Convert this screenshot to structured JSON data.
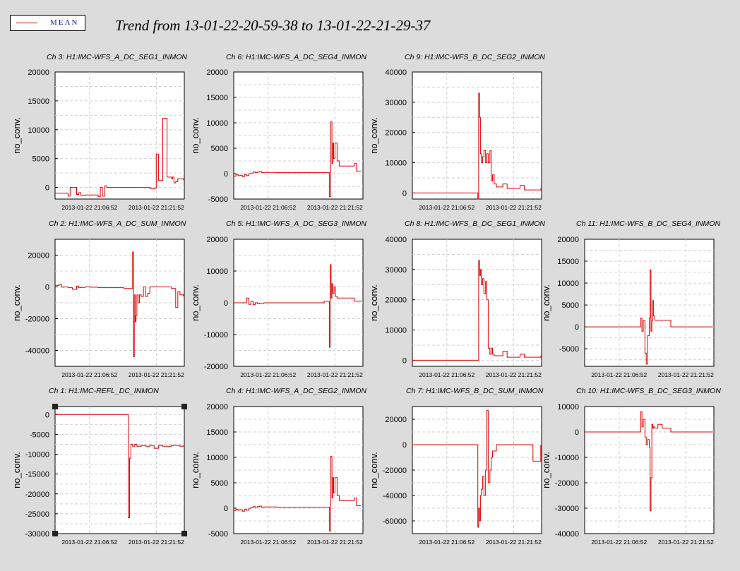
{
  "legend": {
    "label": "MEAN",
    "color": "#e00000"
  },
  "title": "Trend from 13-01-22-20-59-38 to 13-01-22-21-29-37",
  "colors": {
    "trace": "#e00000",
    "plot_bg": "#ffffff",
    "page_bg": "#dcdcdc",
    "grid": "#c8c8c8"
  },
  "chart_data": [
    {
      "type": "line",
      "title": "Ch 3: H1:IMC-WFS_A_DC_SEG1_INMON",
      "ylabel": "no_conv.",
      "ylim": [
        -2000,
        20000
      ],
      "yticks": [
        0,
        5000,
        10000,
        15000,
        20000
      ],
      "xticks": [
        "2013-01-22 21:06:52",
        "2013-01-22 21:21:52"
      ],
      "series": [
        {
          "x": [
            0,
            3,
            3.5,
            5,
            5.5,
            6,
            7,
            10,
            10.5,
            11,
            11.5,
            12,
            15,
            15.5,
            16,
            17,
            20,
            20.3,
            20.6,
            21,
            21.3,
            21.6,
            22,
            22,
            22.3,
            23,
            23.5,
            24,
            25,
            26,
            27,
            27.3,
            27.6,
            28,
            28.5,
            29,
            29.8
          ],
          "y": [
            -1000,
            -1500,
            0,
            -1200,
            -900,
            -1400,
            -1300,
            -1600,
            0,
            -1500,
            300,
            0,
            0,
            0,
            0,
            0,
            0,
            0,
            0,
            0,
            0,
            0,
            -200,
            -200,
            -200,
            -100,
            5800,
            1200,
            12000,
            1800,
            1500,
            1800,
            800,
            1000,
            1500,
            1500,
            1300
          ]
        }
      ]
    },
    {
      "type": "line",
      "title": "Ch 6: H1:IMC-WFS_A_DC_SEG4_INMON",
      "ylabel": "no_conv.",
      "ylim": [
        -5000,
        20000
      ],
      "yticks": [
        -5000,
        0,
        5000,
        10000,
        15000,
        20000
      ],
      "xticks": [
        "2013-01-22 21:06:52",
        "2013-01-22 21:21:52"
      ],
      "series": [
        {
          "x": [
            0,
            0.5,
            1,
            1.5,
            2,
            2.5,
            3,
            3.5,
            4,
            4.5,
            5,
            5.5,
            6,
            6.5,
            7,
            10,
            12,
            15,
            20,
            21.5,
            22,
            22.2,
            22.5,
            22.8,
            23,
            23.2,
            23.5,
            24,
            24.5,
            25,
            25.5,
            26,
            26.5,
            27,
            27.5,
            28,
            28.5,
            29,
            29.5
          ],
          "y": [
            -500,
            -200,
            -400,
            -300,
            -600,
            -200,
            -400,
            0,
            100,
            300,
            200,
            300,
            400,
            200,
            250,
            200,
            200,
            200,
            200,
            200,
            200,
            -4500,
            10200,
            2000,
            6000,
            3000,
            6000,
            2500,
            1500,
            1500,
            1500,
            1500,
            1500,
            1500,
            1500,
            2000,
            500,
            500,
            500
          ]
        }
      ]
    },
    {
      "type": "line",
      "title": "Ch 9: H1:IMC-WFS_B_DC_SEG2_INMON",
      "ylabel": "no_conv.",
      "ylim": [
        -2000,
        40000
      ],
      "yticks": [
        0,
        10000,
        20000,
        30000,
        40000
      ],
      "xticks": [
        "2013-01-22 21:06:52",
        "2013-01-22 21:21:52"
      ],
      "series": [
        {
          "x": [
            0,
            5,
            10,
            14,
            15,
            15.2,
            15.4,
            15.6,
            15.8,
            16,
            16.3,
            16.6,
            17,
            17.3,
            17.6,
            18,
            18.3,
            18.6,
            19,
            19.5,
            20,
            21,
            22,
            23,
            24,
            25,
            26,
            27,
            28,
            29.8
          ],
          "y": [
            0,
            0,
            0,
            0,
            0,
            -2000,
            33000,
            25000,
            13000,
            10000,
            12000,
            14000,
            10000,
            13000,
            10000,
            14000,
            4000,
            6000,
            3000,
            2000,
            2000,
            3000,
            1500,
            1500,
            1500,
            2500,
            1000,
            1000,
            1000,
            1500
          ]
        }
      ]
    },
    {
      "type": "line",
      "title": "Ch 2: H1:IMC-WFS_A_DC_SUM_INMON",
      "ylabel": "no_conv.",
      "ylim": [
        -50000,
        30000
      ],
      "yticks": [
        -40000,
        -20000,
        0,
        20000
      ],
      "xticks": [
        "2013-01-22 21:06:52",
        "2013-01-22 21:21:52"
      ],
      "series": [
        {
          "x": [
            0,
            1,
            1.5,
            2,
            3,
            4,
            5,
            5.5,
            6,
            7,
            8,
            10,
            12,
            15,
            16,
            17,
            18,
            18.2,
            18.4,
            18.6,
            18.8,
            19,
            19.3,
            19.6,
            20,
            20.5,
            21,
            21.5,
            22,
            23,
            24,
            25,
            26,
            27,
            28,
            28.5,
            29,
            29.8
          ],
          "y": [
            1000,
            1500,
            -200,
            0,
            -500,
            -1500,
            500,
            -500,
            -300,
            0,
            -200,
            -500,
            -500,
            -500,
            -1000,
            -1000,
            22000,
            -44000,
            -5000,
            -22000,
            -18000,
            -5000,
            -10000,
            -5000,
            -6000,
            0,
            -6000,
            -4000,
            0,
            0,
            0,
            0,
            0,
            -1000,
            -13000,
            -3000,
            -5000,
            -6000
          ]
        }
      ]
    },
    {
      "type": "line",
      "title": "Ch 5: H1:IMC-WFS_A_DC_SEG3_INMON",
      "ylabel": "no_conv.",
      "ylim": [
        -20000,
        20000
      ],
      "yticks": [
        -20000,
        -10000,
        0,
        10000,
        20000
      ],
      "xticks": [
        "2013-01-22 21:06:52",
        "2013-01-22 21:21:52"
      ],
      "series": [
        {
          "x": [
            0,
            2,
            3,
            3.5,
            4,
            4.5,
            5,
            5.5,
            6,
            7,
            10,
            15,
            20,
            21,
            22,
            22.2,
            22.4,
            22.6,
            22.8,
            23,
            23.3,
            23.6,
            24,
            25,
            26,
            27,
            28,
            29,
            29.8
          ],
          "y": [
            0,
            0,
            1500,
            -500,
            500,
            -600,
            0,
            -300,
            -200,
            0,
            0,
            0,
            0,
            500,
            500,
            -14000,
            12000,
            1500,
            6000,
            3000,
            5000,
            2000,
            1500,
            1500,
            1500,
            1500,
            500,
            500,
            500
          ]
        }
      ]
    },
    {
      "type": "line",
      "title": "Ch 8: H1:IMC-WFS_B_DC_SEG1_INMON",
      "ylabel": "no_conv.",
      "ylim": [
        -2000,
        40000
      ],
      "yticks": [
        0,
        10000,
        20000,
        30000,
        40000
      ],
      "xticks": [
        "2013-01-22 21:06:52",
        "2013-01-22 21:21:52"
      ],
      "series": [
        {
          "x": [
            0,
            5,
            10,
            14,
            15,
            15.2,
            15.4,
            15.6,
            15.8,
            16,
            16.3,
            16.6,
            17,
            17.3,
            17.6,
            18,
            18.3,
            18.6,
            19,
            19.5,
            20,
            21,
            22,
            23,
            24,
            25,
            26,
            27,
            28,
            29.8
          ],
          "y": [
            0,
            0,
            0,
            0,
            0,
            0,
            33000,
            28000,
            30000,
            25000,
            27000,
            22000,
            26000,
            20000,
            4000,
            2000,
            4000,
            2000,
            1500,
            1500,
            1500,
            3000,
            1000,
            1000,
            1000,
            2000,
            1000,
            1000,
            1000,
            1500
          ]
        }
      ]
    },
    {
      "type": "line",
      "title": "Ch 11: H1:IMC-WFS_B_DC_SEG4_INMON",
      "ylabel": "no_conv.",
      "ylim": [
        -9000,
        20000
      ],
      "yticks": [
        -5000,
        0,
        5000,
        10000,
        15000,
        20000
      ],
      "xticks": [
        "2013-01-22 21:06:52",
        "2013-01-22 21:21:52"
      ],
      "series": [
        {
          "x": [
            0,
            5,
            10,
            12.5,
            13,
            13.3,
            13.6,
            14,
            14.3,
            14.6,
            15,
            15.2,
            15.4,
            15.6,
            15.8,
            16,
            16.3,
            16.6,
            17,
            18,
            19,
            20,
            21,
            22,
            23,
            24,
            25,
            26,
            27,
            28,
            29.8
          ],
          "y": [
            0,
            0,
            0,
            0,
            2000,
            -1000,
            1500,
            -6000,
            -8500,
            -2000,
            2000,
            13000,
            -1000,
            1500,
            6000,
            2500,
            1500,
            1500,
            1500,
            1500,
            1500,
            0,
            0,
            0,
            0,
            0,
            0,
            0,
            0,
            0,
            0
          ]
        }
      ]
    },
    {
      "type": "line",
      "title": "Ch 1: H1:IMC-REFL_DC_INMON",
      "ylabel": "no_conv.",
      "ylim": [
        -30000,
        2000
      ],
      "yticks": [
        -30000,
        -25000,
        -20000,
        -15000,
        -10000,
        -5000,
        0
      ],
      "xticks": [
        "2013-01-22 21:06:52",
        "2013-01-22 21:21:52"
      ],
      "series": [
        {
          "x": [
            0,
            2,
            4,
            6,
            8,
            10,
            12,
            14,
            16,
            16.5,
            17,
            17.3,
            17.6,
            18,
            18.5,
            19,
            20,
            21,
            22,
            23,
            24,
            25,
            26,
            27,
            28,
            29,
            29.8
          ],
          "y": [
            0,
            0,
            0,
            0,
            0,
            0,
            0,
            0,
            0,
            0,
            -26000,
            -11000,
            -7500,
            -8000,
            -7500,
            -8000,
            -7800,
            -8000,
            -7800,
            -8500,
            -7800,
            -8000,
            -8000,
            -7800,
            -7800,
            -8000,
            -7800
          ]
        }
      ]
    },
    {
      "type": "line",
      "title": "Ch 4: H1:IMC-WFS_A_DC_SEG2_INMON",
      "ylabel": "no_conv.",
      "ylim": [
        -5000,
        20000
      ],
      "yticks": [
        -5000,
        0,
        5000,
        10000,
        15000,
        20000
      ],
      "xticks": [
        "2013-01-22 21:06:52",
        "2013-01-22 21:21:52"
      ],
      "series": [
        {
          "x": [
            0,
            0.5,
            1,
            1.5,
            2,
            2.5,
            3,
            3.5,
            4,
            4.5,
            5,
            5.5,
            6,
            6.5,
            7,
            10,
            12,
            15,
            20,
            21.5,
            22,
            22.2,
            22.5,
            22.8,
            23,
            23.2,
            23.5,
            24,
            24.5,
            25,
            25.5,
            26,
            26.5,
            27,
            27.5,
            28,
            28.5,
            29,
            29.5
          ],
          "y": [
            -500,
            -200,
            -400,
            -300,
            -600,
            -200,
            -400,
            0,
            100,
            300,
            200,
            300,
            400,
            200,
            250,
            200,
            200,
            200,
            200,
            200,
            200,
            -4500,
            10200,
            2000,
            6000,
            3000,
            6000,
            2500,
            1500,
            1500,
            1500,
            1500,
            1500,
            1500,
            1500,
            2000,
            500,
            500,
            500
          ]
        }
      ]
    },
    {
      "type": "line",
      "title": "Ch 7: H1:IMC-WFS_B_DC_SUM_INMON",
      "ylabel": "no_conv.",
      "ylim": [
        -70000,
        30000
      ],
      "yticks": [
        -60000,
        -40000,
        -20000,
        0,
        20000
      ],
      "xticks": [
        "2013-01-22 21:06:52",
        "2013-01-22 21:21:52"
      ],
      "series": [
        {
          "x": [
            0,
            5,
            10,
            14,
            15,
            15.2,
            15.4,
            15.6,
            15.8,
            16,
            16.3,
            16.6,
            17,
            17.3,
            17.6,
            18,
            18.3,
            18.6,
            19,
            19.5,
            20,
            21,
            22,
            23,
            24,
            25,
            26,
            27,
            28,
            29.8
          ],
          "y": [
            0,
            0,
            0,
            0,
            0,
            -65000,
            -50000,
            -60000,
            -40000,
            -35000,
            -25000,
            -40000,
            -20000,
            27000,
            -30000,
            -20000,
            -10000,
            -5000,
            -5000,
            0,
            0,
            0,
            0,
            0,
            0,
            0,
            0,
            0,
            -13000,
            0
          ]
        }
      ]
    },
    {
      "type": "line",
      "title": "Ch 10: H1:IMC-WFS_B_DC_SEG3_INMON",
      "ylabel": "no_conv.",
      "ylim": [
        -40000,
        10000
      ],
      "yticks": [
        -40000,
        -30000,
        -20000,
        -10000,
        0,
        10000
      ],
      "xticks": [
        "2013-01-22 21:06:52",
        "2013-01-22 21:21:52"
      ],
      "series": [
        {
          "x": [
            0,
            5,
            10,
            12.5,
            13,
            13.3,
            13.6,
            14,
            14.3,
            14.6,
            15,
            15.2,
            15.4,
            15.6,
            15.8,
            16,
            16.3,
            16.6,
            17,
            18,
            19,
            20,
            21,
            22,
            23,
            24,
            25,
            26,
            27,
            28,
            29.8
          ],
          "y": [
            0,
            0,
            0,
            0,
            8000,
            2000,
            5000,
            -2000,
            -5000,
            -3000,
            -6000,
            -31000,
            -18000,
            3000,
            1500,
            2000,
            1500,
            1500,
            3000,
            1500,
            1500,
            0,
            0,
            0,
            0,
            0,
            0,
            0,
            0,
            0,
            0
          ]
        }
      ]
    }
  ]
}
